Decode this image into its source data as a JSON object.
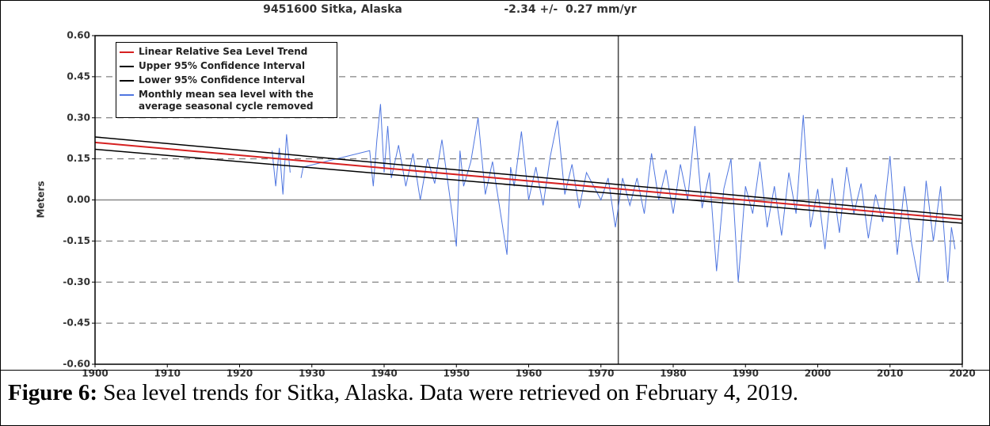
{
  "chart_data": {
    "type": "line",
    "title": "9451600 Sitka, Alaska",
    "subtitle": "-2.34 +/-  0.27 mm/yr",
    "y_label": "Meters",
    "xlim": [
      1900,
      2020
    ],
    "xticks": [
      1900,
      1910,
      1920,
      1930,
      1940,
      1950,
      1960,
      1970,
      1980,
      1990,
      2000,
      2010,
      2020
    ],
    "ylim": [
      -0.6,
      0.6
    ],
    "yticks": [
      {
        "value": 0.6,
        "label": "0.60"
      },
      {
        "value": 0.45,
        "label": "0.45"
      },
      {
        "value": 0.3,
        "label": "0.30"
      },
      {
        "value": 0.15,
        "label": "0.15"
      },
      {
        "value": 0,
        "label": "0.00"
      },
      {
        "value": -0.15,
        "label": "-0.15"
      },
      {
        "value": -0.3,
        "label": "-0.30"
      },
      {
        "value": -0.45,
        "label": "-0.45"
      },
      {
        "value": -0.6,
        "label": "-0.60"
      }
    ],
    "grid": true,
    "legend": "upper left",
    "vline_x": 1972.4,
    "series": [
      {
        "name": "Monthly mean sea level with the\n average seasonal cycle removed",
        "color": "#4f76e0",
        "width": 1,
        "x": [
          1924.5,
          1925,
          1925.5,
          1926,
          1926.5,
          1927,
          1927.3,
          1928.5,
          1928.8,
          1938,
          1938.5,
          1939,
          1939.5,
          1940,
          1940.5,
          1941,
          1942,
          1943,
          1944,
          1945,
          1946,
          1947,
          1948,
          1949,
          1950,
          1950.5,
          1951,
          1952,
          1953,
          1954,
          1955,
          1956,
          1957,
          1957.5,
          1958,
          1959,
          1960,
          1961,
          1962,
          1963,
          1964,
          1965,
          1966,
          1967,
          1968,
          1969,
          1970,
          1971,
          1972,
          1973,
          1974,
          1975,
          1976,
          1977,
          1978,
          1979,
          1980,
          1981,
          1982,
          1983,
          1984,
          1985,
          1986,
          1987,
          1988,
          1989,
          1990,
          1991,
          1992,
          1993,
          1994,
          1995,
          1996,
          1997,
          1998,
          1999,
          2000,
          2001,
          2002,
          2003,
          2004,
          2005,
          2006,
          2007,
          2008,
          2009,
          2010,
          2011,
          2012,
          2013,
          2014,
          2015,
          2016,
          2017,
          2018,
          2018.5,
          2019
        ],
        "values": [
          0.18,
          0.05,
          0.19,
          0.02,
          0.24,
          0.1,
          null,
          0.08,
          0.12,
          0.18,
          0.05,
          0.22,
          0.35,
          0.1,
          0.27,
          0.08,
          0.2,
          0.05,
          0.17,
          0.0,
          0.15,
          0.06,
          0.22,
          0.03,
          -0.17,
          0.18,
          0.05,
          0.14,
          0.3,
          0.02,
          0.14,
          -0.03,
          -0.2,
          0.12,
          0.05,
          0.25,
          0.0,
          0.12,
          -0.02,
          0.16,
          0.29,
          0.02,
          0.13,
          -0.03,
          0.1,
          0.05,
          0.0,
          0.08,
          -0.1,
          0.08,
          -0.02,
          0.08,
          -0.05,
          0.17,
          0.0,
          0.11,
          -0.05,
          0.13,
          0.0,
          0.27,
          -0.03,
          0.1,
          -0.26,
          0.04,
          0.15,
          -0.3,
          0.05,
          -0.05,
          0.14,
          -0.1,
          0.05,
          -0.13,
          0.1,
          -0.05,
          0.31,
          -0.1,
          0.04,
          -0.18,
          0.08,
          -0.12,
          0.12,
          -0.05,
          0.06,
          -0.14,
          0.02,
          -0.08,
          0.16,
          -0.2,
          0.05,
          -0.16,
          -0.3,
          0.07,
          -0.15,
          0.05,
          -0.3,
          -0.1,
          -0.18
        ]
      },
      {
        "name": "Upper 95% Confidence Interval",
        "color": "#000000",
        "width": 1.5,
        "x": [
          1900,
          2020
        ],
        "values": [
          0.23,
          -0.058
        ]
      },
      {
        "name": "Lower 95% Confidence Interval",
        "color": "#000000",
        "width": 1.5,
        "x": [
          1900,
          2020
        ],
        "values": [
          0.185,
          -0.085
        ]
      },
      {
        "name": "Linear Relative Sea Level Trend",
        "color": "#d62020",
        "width": 2,
        "x": [
          1900,
          2020
        ],
        "values": [
          0.21,
          -0.071
        ]
      }
    ],
    "legend_order": [
      3,
      1,
      2,
      0
    ]
  },
  "caption": {
    "label": "Figure 6:",
    "text": "Sea level trends for Sitka, Alaska.  Data were retrieved on February 4, 2019."
  }
}
